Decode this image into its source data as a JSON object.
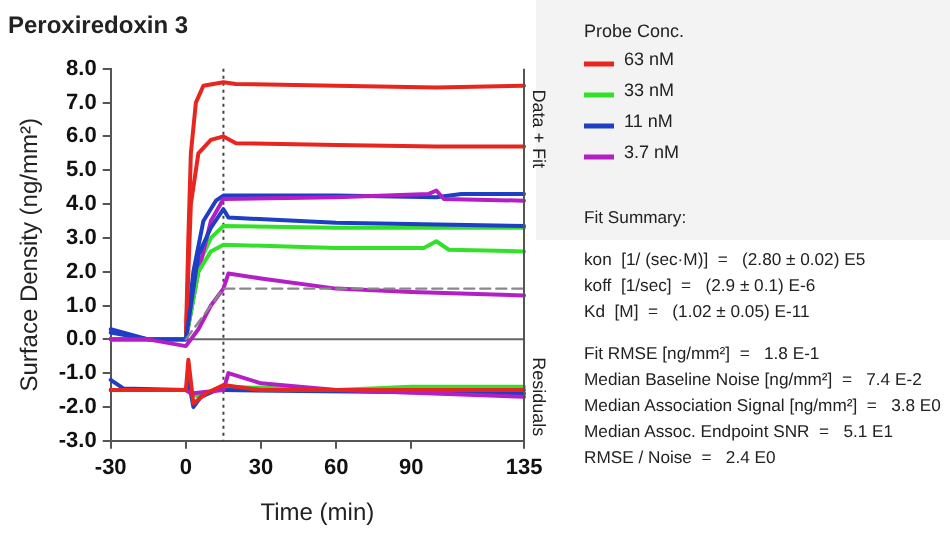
{
  "chart_data": {
    "type": "line",
    "title": "Peroxiredoxin 3",
    "xlabel": "Time (min)",
    "ylabel": "Surface Density (ng/mm²)",
    "legend_title": "Probe Conc.",
    "legend": "right",
    "marker": "none",
    "grid": false,
    "xlim": [
      -30,
      135
    ],
    "xticks": [
      -30,
      0,
      30,
      60,
      90,
      135
    ],
    "ylim": [
      -3,
      8
    ],
    "yticks": [
      {
        "value": -3,
        "label": "-3.0"
      },
      {
        "value": -2,
        "label": "-2.0"
      },
      {
        "value": -1,
        "label": "-1.0"
      },
      {
        "value": 0,
        "label": "0.0"
      },
      {
        "value": 1,
        "label": "1.0"
      },
      {
        "value": 2,
        "label": "2.0"
      },
      {
        "value": 3,
        "label": "3.0"
      },
      {
        "value": 4,
        "label": "4.0"
      },
      {
        "value": 5,
        "label": "5.0"
      },
      {
        "value": 6,
        "label": "6.0"
      },
      {
        "value": 7,
        "label": "7.0"
      },
      {
        "value": 8,
        "label": "8.0"
      }
    ],
    "ref_lines": [
      {
        "axis": "x",
        "value": 15,
        "color": "#444444",
        "line_style": "dotted"
      },
      {
        "axis": "y",
        "value": 0,
        "color": "#666666",
        "line_style": "solid"
      }
    ],
    "series": [
      {
        "name": "63 nM",
        "color": "#e8251f",
        "x": [
          -30,
          -15,
          0,
          1,
          2,
          4,
          7,
          15,
          20,
          60,
          100,
          135
        ],
        "values": [
          0,
          0,
          0,
          3,
          5.5,
          7,
          7.5,
          7.6,
          7.55,
          7.5,
          7.45,
          7.5
        ]
      },
      {
        "name": "33 nM",
        "color": "#33e02a",
        "x": [
          -30,
          -15,
          0,
          5,
          10,
          15,
          60,
          135
        ],
        "values": [
          0,
          0,
          0,
          2.2,
          3,
          3.35,
          3.3,
          3.3
        ]
      },
      {
        "name": "11 nM",
        "color": "#1c3fc4",
        "x": [
          -30,
          -15,
          0,
          3,
          7,
          12,
          15,
          60,
          100,
          110,
          135
        ],
        "values": [
          0.3,
          0,
          0,
          2,
          3.5,
          4.1,
          4.25,
          4.25,
          4.2,
          4.3,
          4.3
        ]
      },
      {
        "name": "3.7 nM",
        "color": "#b31fc4",
        "x": [
          -30,
          -15,
          0,
          5,
          10,
          15,
          60,
          97,
          100,
          103,
          135
        ],
        "values": [
          0,
          0,
          0,
          2,
          3.5,
          4.15,
          4.2,
          4.3,
          4.4,
          4.15,
          4.1
        ]
      },
      {
        "color": "#e8251f",
        "x": [
          -30,
          -15,
          0,
          2,
          5,
          10,
          15,
          20,
          60,
          100,
          135
        ],
        "values": [
          0,
          0,
          0,
          4,
          5.5,
          5.9,
          6,
          5.8,
          5.75,
          5.7,
          5.7
        ]
      },
      {
        "color": "#33e02a",
        "x": [
          -30,
          -15,
          0,
          5,
          10,
          15,
          60,
          95,
          100,
          105,
          135
        ],
        "values": [
          0,
          0,
          0,
          2,
          2.6,
          2.8,
          2.7,
          2.7,
          2.9,
          2.65,
          2.6
        ]
      },
      {
        "color": "#1c3fc4",
        "x": [
          -30,
          -15,
          0,
          5,
          10,
          15,
          17,
          60,
          135
        ],
        "values": [
          0.2,
          0,
          0,
          2.5,
          3.3,
          3.85,
          3.6,
          3.45,
          3.35
        ]
      },
      {
        "color": "#b31fc4",
        "x": [
          -30,
          -15,
          0,
          5,
          10,
          15,
          17,
          30,
          60,
          90,
          135
        ],
        "values": [
          0,
          0,
          -0.2,
          0.3,
          1,
          1.5,
          1.95,
          1.8,
          1.5,
          1.4,
          1.3
        ]
      },
      {
        "color": "#888888",
        "line_style": "dashed",
        "x": [
          0,
          15,
          135
        ],
        "values": [
          0,
          1.5,
          1.5
        ]
      },
      {
        "color": "#33e02a",
        "x": [
          -30,
          0,
          5,
          15,
          60,
          90,
          135
        ],
        "values": [
          -1.5,
          -1.5,
          -1.7,
          -1.4,
          -1.5,
          -1.4,
          -1.4
        ]
      },
      {
        "color": "#1c3fc4",
        "x": [
          -30,
          -25,
          0,
          1,
          3,
          6,
          12,
          15,
          135
        ],
        "values": [
          -1.2,
          -1.45,
          -1.5,
          -1.2,
          -2,
          -1.7,
          -1.5,
          -1.5,
          -1.6
        ]
      },
      {
        "color": "#b31fc4",
        "x": [
          -30,
          0,
          2,
          15,
          17,
          30,
          60,
          135
        ],
        "values": [
          -1.5,
          -1.5,
          -1.6,
          -1.5,
          -1,
          -1.3,
          -1.5,
          -1.7
        ]
      },
      {
        "color": "#e8251f",
        "x": [
          -30,
          0,
          1,
          3,
          8,
          15,
          30,
          135
        ],
        "values": [
          -1.5,
          -1.5,
          -0.6,
          -1.9,
          -1.6,
          -1.35,
          -1.5,
          -1.5
        ]
      }
    ],
    "annotations": [
      "Data + Fit",
      "Residuals",
      "Fit Summary:",
      "kon  [1/ (sec·M)]  =   (2.80 ± 0.02) E5",
      "koff  [1/sec]  =   (2.9 ± 0.1) E-6",
      "Kd  [M]  =   (1.02 ± 0.05) E-11",
      "Fit RMSE [ng/mm²]  =   1.8 E-1",
      "Median Baseline Noise [ng/mm²]  =   7.4 E-2",
      "Median Association Signal [ng/mm²]  =   3.8 E0",
      "Median Assoc. Endpoint SNR  =   5.1 E1",
      "RMSE / Noise  =   2.4 E0"
    ]
  }
}
